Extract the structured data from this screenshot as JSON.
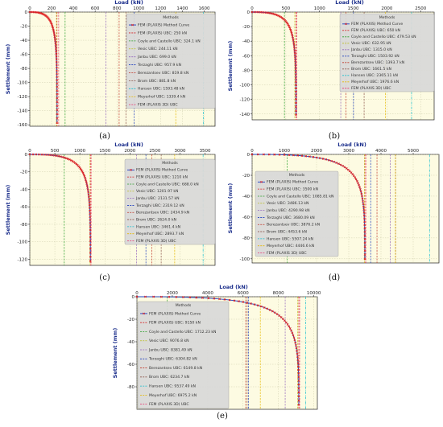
{
  "chart_data": [
    {
      "type": "line",
      "panel_label": "(a)",
      "xlabel": "Load (kN)",
      "ylabel": "Settlement (mm)",
      "xlim": [
        0,
        1700
      ],
      "ylim": [
        -162,
        0
      ],
      "xticks": [
        0,
        200,
        400,
        600,
        800,
        1000,
        1200,
        1400,
        1600
      ],
      "yticks": [
        0,
        -20,
        -40,
        -60,
        -80,
        -100,
        -120,
        -140,
        -160
      ],
      "legend_title": "Methods",
      "legend_position": "upper-right",
      "curve_label": "FEM (PLAXIS) Method Curve",
      "curve": {
        "fail_load": 250,
        "max_settlement": 157
      },
      "methods": [
        {
          "label": "FEM (PLAXIS) UBC: 250 kN",
          "value": 250,
          "color": "#d62728"
        },
        {
          "label": "Coyle and Castello UBC: 324.1 kN",
          "value": 324.1,
          "color": "#2ca02c"
        },
        {
          "label": "Vesic UBC: 244.11 kN",
          "value": 244.11,
          "color": "#bcbd22"
        },
        {
          "label": "Janbu UBC: 699.0 kN",
          "value": 699.0,
          "color": "#9467bd"
        },
        {
          "label": "Terzaghi UBC: 957.9 kN",
          "value": 957.9,
          "color": "#1f3fbf"
        },
        {
          "label": "Berezantsev UBC: 819.8 kN",
          "value": 819.8,
          "color": "#c0392b"
        },
        {
          "label": "Brom UBC: 881.8 kN",
          "value": 881.8,
          "color": "#8c564b"
        },
        {
          "label": "Hansen UBC: 1593.48 kN",
          "value": 1593.48,
          "color": "#17becf"
        },
        {
          "label": "Meyerhof UBC: 1339.4 kN",
          "value": 1339.4,
          "color": "#e6b800"
        },
        {
          "label": "FEM (PLAXIS 3D) UBC",
          "value": 265,
          "color": "#e8336d"
        }
      ]
    },
    {
      "type": "line",
      "panel_label": "(b)",
      "xlabel": "Load (kN)",
      "ylabel": "Settlement (mm)",
      "xlim": [
        0,
        2700
      ],
      "ylim": [
        -148,
        0
      ],
      "xticks": [
        0,
        500,
        1000,
        1500,
        2000,
        2500
      ],
      "yticks": [
        0,
        -20,
        -40,
        -60,
        -80,
        -100,
        -120,
        -140
      ],
      "legend_title": "Methods",
      "legend_position": "upper-right",
      "curve_label": "FEM (PLAXIS) Method Curve",
      "curve": {
        "fail_load": 650,
        "max_settlement": 141
      },
      "methods": [
        {
          "label": "FEM (PLAXIS) UBC: 650 kN",
          "value": 650,
          "color": "#d62728"
        },
        {
          "label": "Coyle and Castello UBC: 479.53 kN",
          "value": 479.53,
          "color": "#2ca02c"
        },
        {
          "label": "Vesic UBC: 632.95 kN",
          "value": 632.95,
          "color": "#bcbd22"
        },
        {
          "label": "Janbu UBC: 1315.0 kN",
          "value": 1315.0,
          "color": "#9467bd"
        },
        {
          "label": "Terzaghi UBC: 1503.92 kN",
          "value": 1503.92,
          "color": "#1f3fbf"
        },
        {
          "label": "Berezantsev UBC: 1393.7 kN",
          "value": 1393.7,
          "color": "#c0392b"
        },
        {
          "label": "Brom UBC: 1661.5 kN",
          "value": 1661.5,
          "color": "#8c564b"
        },
        {
          "label": "Hansen UBC: 2365.11 kN",
          "value": 2365.11,
          "color": "#17becf"
        },
        {
          "label": "Meyerhof UBC: 1976.6 kN",
          "value": 1976.6,
          "color": "#e6b800"
        },
        {
          "label": "FEM (PLAXIS 3D) UBC",
          "value": 665,
          "color": "#e8336d"
        }
      ]
    },
    {
      "type": "line",
      "panel_label": "(c)",
      "xlabel": "Load (kN)",
      "ylabel": "Settlement (mm)",
      "xlim": [
        0,
        3700
      ],
      "ylim": [
        -127,
        0
      ],
      "xticks": [
        0,
        500,
        1000,
        1500,
        2000,
        2500,
        3000,
        3500
      ],
      "yticks": [
        0,
        -20,
        -40,
        -60,
        -80,
        -100,
        -120
      ],
      "legend_title": "Methods",
      "legend_position": "upper-right",
      "curve_label": "FEM (PLAXIS) Method Curve",
      "curve": {
        "fail_load": 1210,
        "max_settlement": 122
      },
      "methods": [
        {
          "label": "FEM (PLAXIS) UBC: 1210 kN",
          "value": 1210,
          "color": "#d62728"
        },
        {
          "label": "Coyle and Castello UBC: 688.0 kN",
          "value": 688.0,
          "color": "#2ca02c"
        },
        {
          "label": "Vesic UBC: 1201.97 kN",
          "value": 1201.97,
          "color": "#bcbd22"
        },
        {
          "label": "Janbu UBC: 2131.57 kN",
          "value": 2131.57,
          "color": "#9467bd"
        },
        {
          "label": "Terzaghi UBC: 2319.12 kN",
          "value": 2319.12,
          "color": "#1f3fbf"
        },
        {
          "label": "Berezantsev UBC: 2434.9 kN",
          "value": 2434.9,
          "color": "#c0392b"
        },
        {
          "label": "Brom UBC: 2624.0 kN",
          "value": 2624.0,
          "color": "#8c564b"
        },
        {
          "label": "Hansen UBC: 3461.4 kN",
          "value": 3461.4,
          "color": "#17becf"
        },
        {
          "label": "Meyerhof UBC: 2893.7 kN",
          "value": 2893.7,
          "color": "#e6b800"
        },
        {
          "label": "FEM (PLAXIS 3D) UBC",
          "value": 1225,
          "color": "#e8336d"
        }
      ]
    },
    {
      "type": "line",
      "panel_label": "(d)",
      "xlabel": "Load (kN)",
      "ylabel": "Settlement (mm)",
      "xlim": [
        0,
        5800
      ],
      "ylim": [
        -104,
        0
      ],
      "xticks": [
        0,
        1000,
        2000,
        3000,
        4000,
        5000
      ],
      "yticks": [
        0,
        -20,
        -40,
        -60,
        -80,
        -100
      ],
      "legend_title": "Methods",
      "legend_position": "upper-left",
      "curve_label": "FEM (PLAXIS) Method Curve",
      "curve": {
        "fail_load": 3500,
        "max_settlement": 100
      },
      "methods": [
        {
          "label": "FEM (PLAXIS) UBC: 3500 kN",
          "value": 3500,
          "color": "#d62728"
        },
        {
          "label": "Coyle and Castello UBC: 1085.81 kN",
          "value": 1085.81,
          "color": "#2ca02c"
        },
        {
          "label": "Vesic UBC: 3486.13 kN",
          "value": 3486.13,
          "color": "#bcbd22"
        },
        {
          "label": "Janbu UBC: 4290.98 kN",
          "value": 4290.98,
          "color": "#9467bd"
        },
        {
          "label": "Terzaghi UBC: 3680.09 kN",
          "value": 3680.09,
          "color": "#1f3fbf"
        },
        {
          "label": "Berezantsev UBC: 3876.2 kN",
          "value": 3876.2,
          "color": "#c0392b"
        },
        {
          "label": "Brom UBC: 4453.6 kN",
          "value": 4453.6,
          "color": "#8c564b"
        },
        {
          "label": "Hansen UBC: 5507.24 kN",
          "value": 5507.24,
          "color": "#17becf"
        },
        {
          "label": "Meyerhof UBC: 4446.6 kN",
          "value": 4446.6,
          "color": "#e6b800"
        },
        {
          "label": "FEM (PLAXIS 3D) UBC",
          "value": 3530,
          "color": "#e8336d"
        }
      ]
    },
    {
      "type": "line",
      "panel_label": "(e)",
      "xlabel": "Load (kN)",
      "ylabel": "Settlement (mm)",
      "xlim": [
        0,
        10200
      ],
      "ylim": [
        -100,
        0
      ],
      "xticks": [
        0,
        2000,
        4000,
        6000,
        8000,
        10000
      ],
      "yticks": [
        0,
        -20,
        -40,
        -60,
        -80
      ],
      "legend_title": "Methods",
      "legend_position": "lower-left",
      "curve_label": "FEM (PLAXIS) Method Curve",
      "curve": {
        "fail_load": 9150,
        "max_settlement": 96
      },
      "methods": [
        {
          "label": "FEM (PLAXIS) UBC: 9150 kN",
          "value": 9150,
          "color": "#d62728"
        },
        {
          "label": "Coyle and Castello UBC: 1712.23 kN",
          "value": 1712.23,
          "color": "#2ca02c"
        },
        {
          "label": "Vesic UBC: 9076.8 kN",
          "value": 9076.8,
          "color": "#bcbd22"
        },
        {
          "label": "Janbu UBC: 8381.49 kN",
          "value": 8381.49,
          "color": "#9467bd"
        },
        {
          "label": "Terzaghi UBC: 6304.82 kN",
          "value": 6304.82,
          "color": "#1f3fbf"
        },
        {
          "label": "Berezantsev UBC: 6149.8 kN",
          "value": 6149.8,
          "color": "#c0392b"
        },
        {
          "label": "Brom UBC: 6234.7 kN",
          "value": 6234.7,
          "color": "#8c564b"
        },
        {
          "label": "Hansen UBC: 9537.49 kN",
          "value": 9537.49,
          "color": "#17becf"
        },
        {
          "label": "Meyerhof UBC: 6975.2 kN",
          "value": 6975.2,
          "color": "#e6b800"
        },
        {
          "label": "FEM (PLAXIS 3D) UBC",
          "value": 9200,
          "color": "#e8336d"
        }
      ]
    }
  ]
}
